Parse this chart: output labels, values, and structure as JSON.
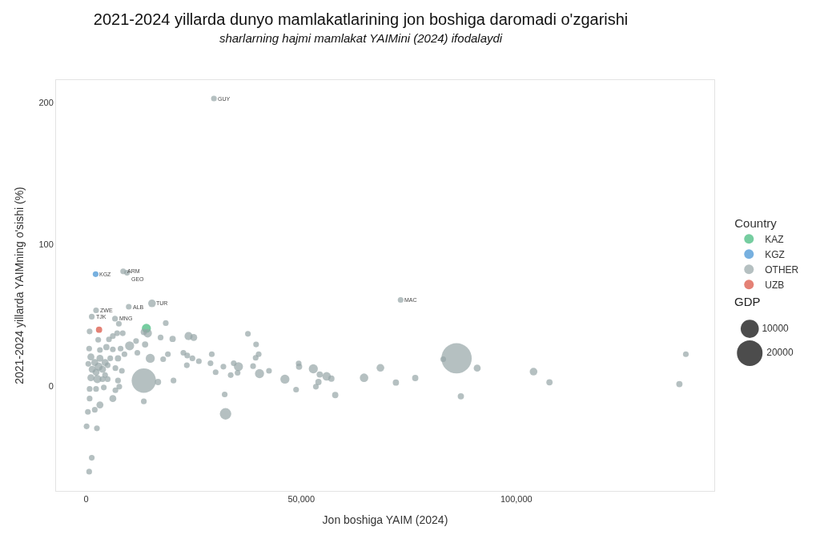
{
  "chart_data": {
    "type": "bubble",
    "title": "2021-2024 yillarda dunyo mamlakatlarining jon boshiga daromadi o'zgarishi",
    "subtitle": "sharlarning hajmi mamlakat YAIMini (2024) ifodalaydi",
    "xlabel": "Jon boshiga YAIM (2024)",
    "ylabel": "2021-2024 yillarda YAIMning o'sishi (%)",
    "legend_title": "Country",
    "legend": "right",
    "xlim": [
      -7000,
      146000
    ],
    "xticks": [
      0,
      {
        "value": 50000,
        "label": "50,000"
      },
      {
        "value": 100000,
        "label": "100,000"
      }
    ],
    "ylim": [
      -74,
      216
    ],
    "yticks": [
      0,
      100,
      200
    ],
    "size_legend": [
      10000,
      20000
    ],
    "series": [
      {
        "name": "KAZ",
        "color": "#3cb878",
        "x": [
          14000
        ],
        "values": [
          40.8
        ],
        "sizes": [
          2500
        ]
      },
      {
        "name": "KGZ",
        "color": "#3d8fd1",
        "x": [
          2200
        ],
        "values": [
          79
        ],
        "sizes": [
          1000
        ]
      },
      {
        "name": "OTHER",
        "color": "#95a5a6",
        "x": [
          29700,
          8600,
          9500,
          2300,
          1300,
          9900,
          15300,
          6700,
          73100,
          7600,
          18500,
          800,
          14300,
          13400,
          2800,
          7200,
          6200,
          5300,
          8500,
          10100,
          11600,
          13700,
          17300,
          20100,
          23800,
          25000,
          700,
          3200,
          4700,
          6200,
          8000,
          8900,
          5600,
          7400,
          11900,
          14900,
          17900,
          19000,
          22600,
          23500,
          24700,
          26200,
          29200,
          28900,
          31900,
          34300,
          35400,
          33600,
          23400,
          30100,
          35200,
          1100,
          2000,
          2900,
          1400,
          3800,
          1100,
          2600,
          4400,
          500,
          5000,
          3800,
          6800,
          8300,
          7400,
          13400,
          16700,
          20300,
          800,
          2300,
          4100,
          6800,
          7700,
          800,
          3200,
          2000,
          6200,
          400,
          13400,
          32200,
          32400,
          100,
          2500,
          1300,
          700,
          3200,
          4400,
          2300,
          5000,
          37600,
          39500,
          40100,
          39400,
          38800,
          40300,
          42500,
          46200,
          48800,
          49500,
          49400,
          52800,
          54300,
          55900,
          57000,
          54000,
          53400,
          57900,
          64600,
          68400,
          72000,
          76500,
          83000,
          86100,
          90900,
          87100,
          104000,
          107700,
          139400,
          137900
        ],
        "values": [
          203,
          81,
          80,
          53.5,
          49,
          56,
          58.4,
          47.6,
          60.8,
          44,
          44.5,
          38.6,
          37.3,
          38.2,
          32.7,
          37.3,
          35.3,
          33,
          37.3,
          28.4,
          31.8,
          29.4,
          34.3,
          33.3,
          35.3,
          34.3,
          26.5,
          25.5,
          27.5,
          25.9,
          26.5,
          22.5,
          19.6,
          19.6,
          23.5,
          19.6,
          19,
          22.5,
          23.5,
          21.6,
          19.6,
          17.6,
          22.5,
          16.1,
          13.7,
          16.1,
          13.7,
          7.8,
          14.7,
          9.8,
          9.4,
          20.6,
          16.7,
          13.7,
          11.8,
          11.8,
          5.9,
          4.9,
          7.8,
          15.7,
          14.7,
          4.9,
          12.7,
          10.8,
          3.9,
          3.9,
          2.9,
          3.9,
          -2,
          -2,
          -1,
          -2.9,
          -0.4,
          -8.8,
          -13.3,
          -16.7,
          -8.8,
          -18.2,
          -10.8,
          -5.9,
          -19.6,
          -28.4,
          -29.8,
          -50.6,
          -60.4,
          19.6,
          16.7,
          9.8,
          4.9,
          36.9,
          29.4,
          22.5,
          20,
          14.1,
          8.8,
          10.8,
          4.9,
          -2.5,
          13.7,
          16,
          12.2,
          8.2,
          6.9,
          5.3,
          2.9,
          -0.4,
          -6.3,
          5.9,
          12.9,
          2.5,
          5.7,
          19,
          19.6,
          12.7,
          -7.2,
          10.2,
          2.7,
          22.5,
          1.4
        ],
        "sizes": [
          1000,
          1000,
          1000,
          1000,
          1000,
          1000,
          1800,
          1000,
          1000,
          1000,
          1000,
          1000,
          2200,
          1200,
          1000,
          1000,
          1000,
          1000,
          1000,
          2500,
          1000,
          1200,
          1000,
          1200,
          2000,
          1500,
          1000,
          1000,
          1200,
          1000,
          1000,
          1000,
          1000,
          1200,
          1000,
          2500,
          1000,
          1000,
          1000,
          1000,
          1000,
          1000,
          1000,
          1000,
          1000,
          1000,
          2500,
          1000,
          1000,
          1000,
          1000,
          1500,
          1500,
          2000,
          1500,
          1500,
          1500,
          2000,
          1000,
          1000,
          1000,
          1000,
          1000,
          1000,
          1000,
          18000,
          1200,
          1000,
          1000,
          1000,
          1000,
          1000,
          1000,
          1000,
          1500,
          1000,
          1500,
          1000,
          1000,
          1000,
          4000,
          1000,
          1000,
          1000,
          1000,
          1500,
          1500,
          1500,
          1000,
          1000,
          1000,
          1000,
          1000,
          1000,
          2500,
          1000,
          2500,
          1000,
          1200,
          1000,
          2500,
          1200,
          2200,
          1200,
          1200,
          1000,
          1200,
          2200,
          1800,
          1200,
          1200,
          1000,
          28000,
          1500,
          1200,
          1800,
          1200,
          1000,
          1200
        ]
      },
      {
        "name": "UZB",
        "color": "#d94c3a",
        "x": [
          3000
        ],
        "values": [
          39.8
        ],
        "sizes": [
          1200
        ]
      }
    ],
    "annotations": [
      {
        "text": "GUY",
        "x": 29700,
        "y": 203
      },
      {
        "text": "KGZ",
        "x": 2200,
        "y": 79
      },
      {
        "text": "ARM",
        "x": 8600,
        "y": 81
      },
      {
        "text": "GEO",
        "x": 9500,
        "y": 80
      },
      {
        "text": "ZWE",
        "x": 2300,
        "y": 53.5
      },
      {
        "text": "TJK",
        "x": 1300,
        "y": 49
      },
      {
        "text": "ALB",
        "x": 9900,
        "y": 56
      },
      {
        "text": "TUR",
        "x": 15300,
        "y": 58.4
      },
      {
        "text": "MNG",
        "x": 6700,
        "y": 47.6
      },
      {
        "text": "MAC",
        "x": 73100,
        "y": 60.8
      },
      "GDP"
    ]
  }
}
